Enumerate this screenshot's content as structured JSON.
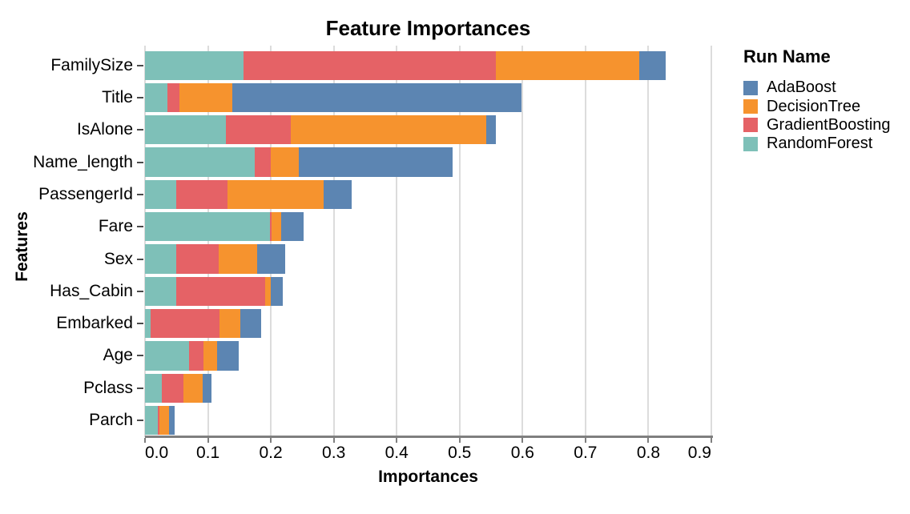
{
  "chart": {
    "title": "Feature Importances",
    "x_axis": {
      "title": "Importances",
      "tick_values": [
        0.0,
        0.1,
        0.2,
        0.3,
        0.4,
        0.5,
        0.6,
        0.7,
        0.8,
        0.9
      ],
      "tick_labels": [
        "0.0",
        "0.1",
        "0.2",
        "0.3",
        "0.4",
        "0.5",
        "0.6",
        "0.7",
        "0.8",
        "0.9"
      ]
    },
    "y_axis": {
      "title": "Features",
      "categories": [
        "FamilySize",
        "Title",
        "IsAlone",
        "Name_length",
        "PassengerId",
        "Fare",
        "Sex",
        "Has_Cabin",
        "Embarked",
        "Age",
        "Pclass",
        "Parch"
      ]
    }
  },
  "legend": {
    "title": "Run Name",
    "items": [
      {
        "label": "AdaBoost",
        "color": "#5c85b2"
      },
      {
        "label": "DecisionTree",
        "color": "#f6932e"
      },
      {
        "label": "GradientBoosting",
        "color": "#e56266"
      },
      {
        "label": "RandomForest",
        "color": "#7ec0b8"
      }
    ]
  },
  "chart_data": {
    "type": "bar",
    "orientation": "horizontal",
    "stacked": true,
    "grid": true,
    "legend_position": "right",
    "legend_title": "Run Name",
    "title": "Feature Importances",
    "xlabel": "Importances",
    "ylabel": "Features",
    "xlim": [
      0,
      0.9
    ],
    "categories": [
      "FamilySize",
      "Title",
      "IsAlone",
      "Name_length",
      "PassengerId",
      "Fare",
      "Sex",
      "Has_Cabin",
      "Embarked",
      "Age",
      "Pclass",
      "Parch"
    ],
    "stack_order": [
      "RandomForest",
      "GradientBoosting",
      "DecisionTree",
      "AdaBoost"
    ],
    "series": [
      {
        "name": "AdaBoost",
        "color": "#5c85b2",
        "values": [
          0.041,
          0.459,
          0.016,
          0.244,
          0.045,
          0.036,
          0.045,
          0.019,
          0.033,
          0.035,
          0.014,
          0.009
        ]
      },
      {
        "name": "DecisionTree",
        "color": "#f6932e",
        "values": [
          0.228,
          0.084,
          0.31,
          0.045,
          0.153,
          0.015,
          0.061,
          0.009,
          0.032,
          0.021,
          0.031,
          0.015
        ]
      },
      {
        "name": "GradientBoosting",
        "color": "#e56266",
        "values": [
          0.402,
          0.019,
          0.104,
          0.025,
          0.081,
          0.003,
          0.067,
          0.141,
          0.11,
          0.023,
          0.034,
          0.003
        ]
      },
      {
        "name": "RandomForest",
        "color": "#7ec0b8",
        "values": [
          0.156,
          0.036,
          0.128,
          0.175,
          0.05,
          0.198,
          0.05,
          0.05,
          0.009,
          0.07,
          0.027,
          0.02
        ]
      }
    ],
    "stacked_totals": [
      0.827,
      0.598,
      0.558,
      0.489,
      0.329,
      0.252,
      0.223,
      0.219,
      0.184,
      0.149,
      0.106,
      0.047
    ]
  },
  "style": {
    "gridline_color": "#dcdcdc",
    "axis_line_color": "#7f7f7f",
    "background_color": "#ffffff"
  }
}
